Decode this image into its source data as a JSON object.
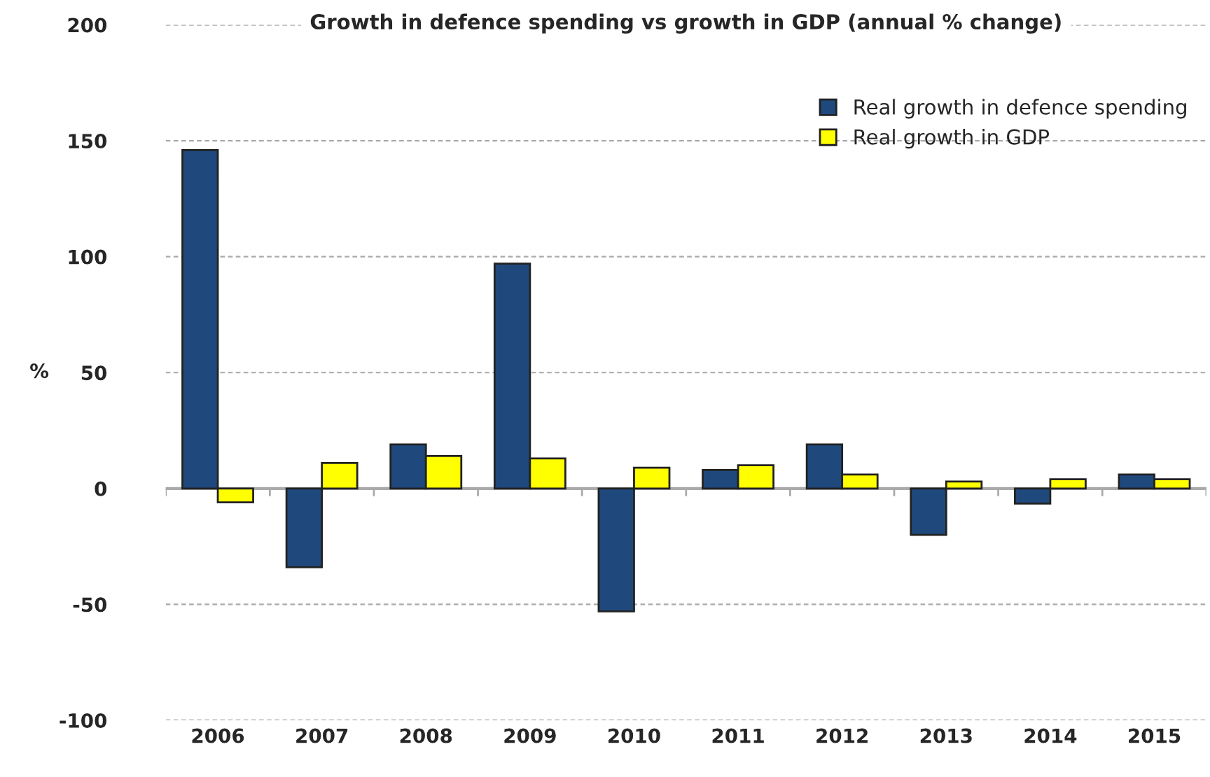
{
  "chart_data": {
    "type": "bar",
    "title": "Growth in defence spending vs growth in GDP (annual % change)",
    "ylabel": "%",
    "categories": [
      "2006",
      "2007",
      "2008",
      "2009",
      "2010",
      "2011",
      "2012",
      "2013",
      "2014",
      "2015"
    ],
    "series": [
      {
        "name": "Real growth in defence spending",
        "color": "#1f497d",
        "values": [
          146,
          -34,
          19,
          97,
          -53,
          8,
          19,
          -20,
          -6.5,
          6
        ]
      },
      {
        "name": "Real growth in GDP",
        "color": "#ffff00",
        "values": [
          -6,
          11,
          14,
          13,
          9,
          10,
          6,
          3,
          4,
          4
        ]
      }
    ],
    "ylim": [
      -100,
      200
    ],
    "yticks": [
      -100,
      -50,
      0,
      50,
      100,
      150,
      200
    ],
    "grid": "y",
    "legend": "top right"
  }
}
